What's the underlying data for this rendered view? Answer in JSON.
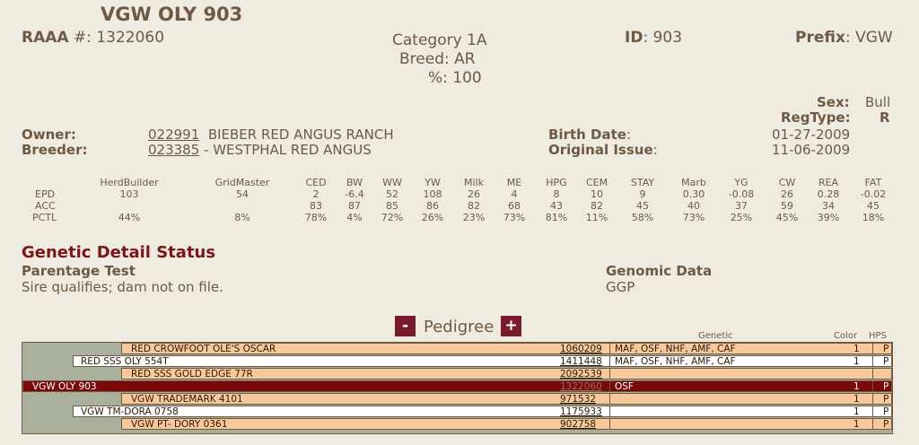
{
  "animal": {
    "name": "VGW OLY 903",
    "raaa_label": "RAAA",
    "raaa_hash": " #",
    "raaa_value": ": 1322060",
    "category": "Category 1A",
    "breed_label": "Breed:",
    "breed_value": "AR",
    "pct_label": "%:",
    "pct_value": "100",
    "id_label": "ID",
    "id_value": ": 903",
    "prefix_label": "Prefix",
    "prefix_value": ": VGW",
    "sex_label": "Sex:",
    "sex_value": "Bull",
    "regtype_label": "RegType:",
    "regtype_value": "R",
    "owner_label": "Owner:",
    "owner_id": "022991",
    "owner_name": "BIEBER RED ANGUS RANCH",
    "breeder_label": "Breeder:",
    "breeder_id": "023385",
    "breeder_name": "- WESTPHAL RED ANGUS",
    "birth_label": "Birth Date",
    "birth_value": "01-27-2009",
    "issue_label": "Original Issue",
    "issue_value": "11-06-2009",
    "colon": ":"
  },
  "epd": {
    "row_labels": [
      "EPD",
      "ACC",
      "PCTL"
    ],
    "columns": [
      {
        "name": "HerdBuilder",
        "epd": "103",
        "acc": "",
        "pctl": "44%"
      },
      {
        "name": "GridMaster",
        "epd": "54",
        "acc": "",
        "pctl": "8%"
      },
      {
        "name": "CED",
        "epd": "2",
        "acc": "83",
        "pctl": "78%"
      },
      {
        "name": "BW",
        "epd": "-6.4",
        "acc": "87",
        "pctl": "4%"
      },
      {
        "name": "WW",
        "epd": "52",
        "acc": "85",
        "pctl": "72%"
      },
      {
        "name": "YW",
        "epd": "108",
        "acc": "86",
        "pctl": "26%"
      },
      {
        "name": "Milk",
        "epd": "26",
        "acc": "82",
        "pctl": "23%"
      },
      {
        "name": "ME",
        "epd": "4",
        "acc": "68",
        "pctl": "73%"
      },
      {
        "name": "HPG",
        "epd": "8",
        "acc": "43",
        "pctl": "81%"
      },
      {
        "name": "CEM",
        "epd": "10",
        "acc": "82",
        "pctl": "11%"
      },
      {
        "name": "STAY",
        "epd": "9",
        "acc": "45",
        "pctl": "58%"
      },
      {
        "name": "Marb",
        "epd": "0.30",
        "acc": "40",
        "pctl": "73%"
      },
      {
        "name": "YG",
        "epd": "-0.08",
        "acc": "37",
        "pctl": "25%"
      },
      {
        "name": "CW",
        "epd": "26",
        "acc": "59",
        "pctl": "45%"
      },
      {
        "name": "REA",
        "epd": "0.28",
        "acc": "34",
        "pctl": "39%"
      },
      {
        "name": "FAT",
        "epd": "-0.02",
        "acc": "45",
        "pctl": "18%"
      }
    ]
  },
  "genetic": {
    "title": "Genetic Detail Status",
    "parentage_label": "Parentage Test",
    "parentage_value": "Sire qualifies; dam not on file.",
    "genomic_label": "Genomic Data",
    "genomic_value": "GGP"
  },
  "pedigree": {
    "minus": "-",
    "title": "Pedigree",
    "plus": "+",
    "col_genetic": "Genetic",
    "col_color": "Color",
    "col_hps": "HPS",
    "rows": [
      {
        "name": "RED CROWFOOT OLE'S OSCAR",
        "reg": "1060209",
        "genetic": "MAF, OSF, NHF, AMF, CAF",
        "color": "1",
        "hps": "P"
      },
      {
        "name": "RED SSS OLY 554T",
        "reg": "1411448",
        "genetic": "MAF, OSF, NHF, AMF, CAF",
        "color": "1",
        "hps": "P"
      },
      {
        "name": "RED SSS GOLD EDGE 77R",
        "reg": "2092539",
        "genetic": "",
        "color": "",
        "hps": ""
      },
      {
        "name": "VGW OLY 903",
        "reg": "1322060",
        "genetic": "OSF",
        "color": "1",
        "hps": "P"
      },
      {
        "name": "VGW TRADEMARK 4101",
        "reg": "971532",
        "genetic": "",
        "color": "1",
        "hps": "P"
      },
      {
        "name": "VGW TM-DORA 0758",
        "reg": "1175933",
        "genetic": "",
        "color": "1",
        "hps": "P"
      },
      {
        "name": "VGW PT- DORY 0361",
        "reg": "902758",
        "genetic": "",
        "color": "1",
        "hps": "P"
      }
    ]
  }
}
